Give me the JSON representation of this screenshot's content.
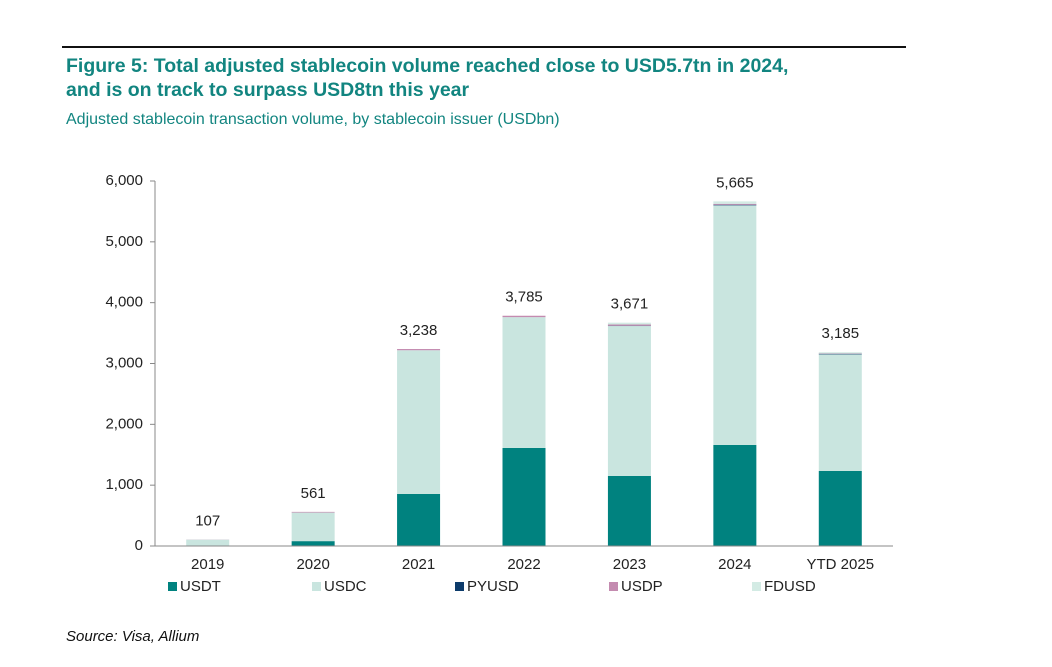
{
  "chart_data": {
    "type": "stacked_bar",
    "title_lines": [
      "Figure 5: Total adjusted stablecoin volume reached close to USD5.7tn in 2024,",
      "and is on track to surpass USD8tn this year"
    ],
    "subtitle": "Adjusted stablecoin transaction volume, by stablecoin issuer (USDbn)",
    "source": "Source: Visa, Allium",
    "categories": [
      "2019",
      "2020",
      "2021",
      "2022",
      "2023",
      "2024",
      "YTD 2025"
    ],
    "series": [
      {
        "name": "USDT",
        "color": "#00827f",
        "values": [
          5,
          80,
          855,
          1612,
          1151,
          1661,
          1233
        ]
      },
      {
        "name": "USDC",
        "color": "#c9e5df",
        "values": [
          100,
          470,
          2363,
          2150,
          2465,
          3939,
          1917
        ]
      },
      {
        "name": "PYUSD",
        "color": "#0d3b6b",
        "values": [
          0,
          0,
          0,
          0,
          5,
          10,
          10
        ]
      },
      {
        "name": "USDP",
        "color": "#c48bb0",
        "values": [
          2,
          11,
          20,
          23,
          20,
          15,
          5
        ]
      },
      {
        "name": "FDUSD",
        "color": "#d3ebe4",
        "values": [
          0,
          0,
          0,
          0,
          30,
          40,
          20
        ]
      }
    ],
    "totals": [
      107,
      561,
      {
        "value": 3238,
        "label": "3,238"
      },
      {
        "value": 3785,
        "label": "3,785"
      },
      {
        "value": 3671,
        "label": "3,671"
      },
      {
        "value": 5665,
        "label": "5,665"
      },
      {
        "value": 3185,
        "label": "3,185"
      }
    ],
    "ylim": [
      0,
      6000
    ],
    "yticks": [
      0,
      {
        "value": 1000,
        "label": "1,000"
      },
      {
        "value": 2000,
        "label": "2,000"
      },
      {
        "value": 3000,
        "label": "3,000"
      },
      {
        "value": 4000,
        "label": "4,000"
      },
      {
        "value": 5000,
        "label": "5,000"
      },
      {
        "value": 6000,
        "label": "6,000"
      }
    ],
    "grid": false
  }
}
